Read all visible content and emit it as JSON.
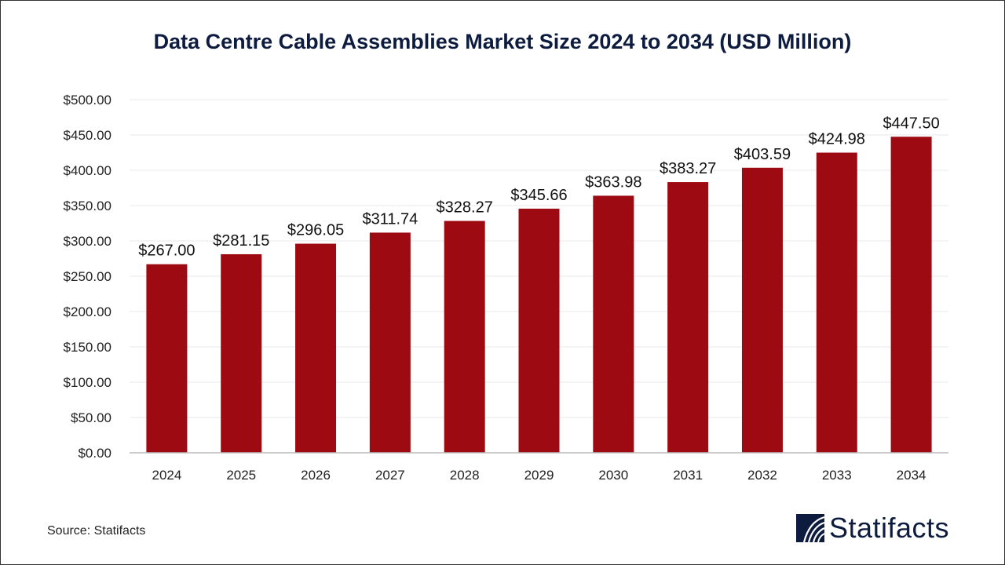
{
  "chart_data": {
    "type": "bar",
    "title": "Data Centre Cable Assemblies Market Size 2024 to 2034 (USD Million)",
    "categories": [
      "2024",
      "2025",
      "2026",
      "2027",
      "2028",
      "2029",
      "2030",
      "2031",
      "2032",
      "2033",
      "2034"
    ],
    "values": [
      267.0,
      281.15,
      296.05,
      311.74,
      328.27,
      345.66,
      363.98,
      383.27,
      403.59,
      424.98,
      447.5
    ],
    "data_labels": [
      "$267.00",
      "$281.15",
      "$296.05",
      "$311.74",
      "$328.27",
      "$345.66",
      "$363.98",
      "$383.27",
      "$403.59",
      "$424.98",
      "$447.50"
    ],
    "ylim": [
      0,
      500
    ],
    "yticks": [
      0,
      50,
      100,
      150,
      200,
      250,
      300,
      350,
      400,
      450,
      500
    ],
    "ytick_labels": [
      "$0.00",
      "$50.00",
      "$100.00",
      "$150.00",
      "$200.00",
      "$250.00",
      "$300.00",
      "$350.00",
      "$400.00",
      "$450.00",
      "$500.00"
    ],
    "xlabel": "",
    "ylabel": "",
    "grid": true,
    "bar_color": "#9e0a12"
  },
  "source": "Source: Statifacts",
  "logo": {
    "text": "Statifacts",
    "color": "#0d1b3e"
  }
}
